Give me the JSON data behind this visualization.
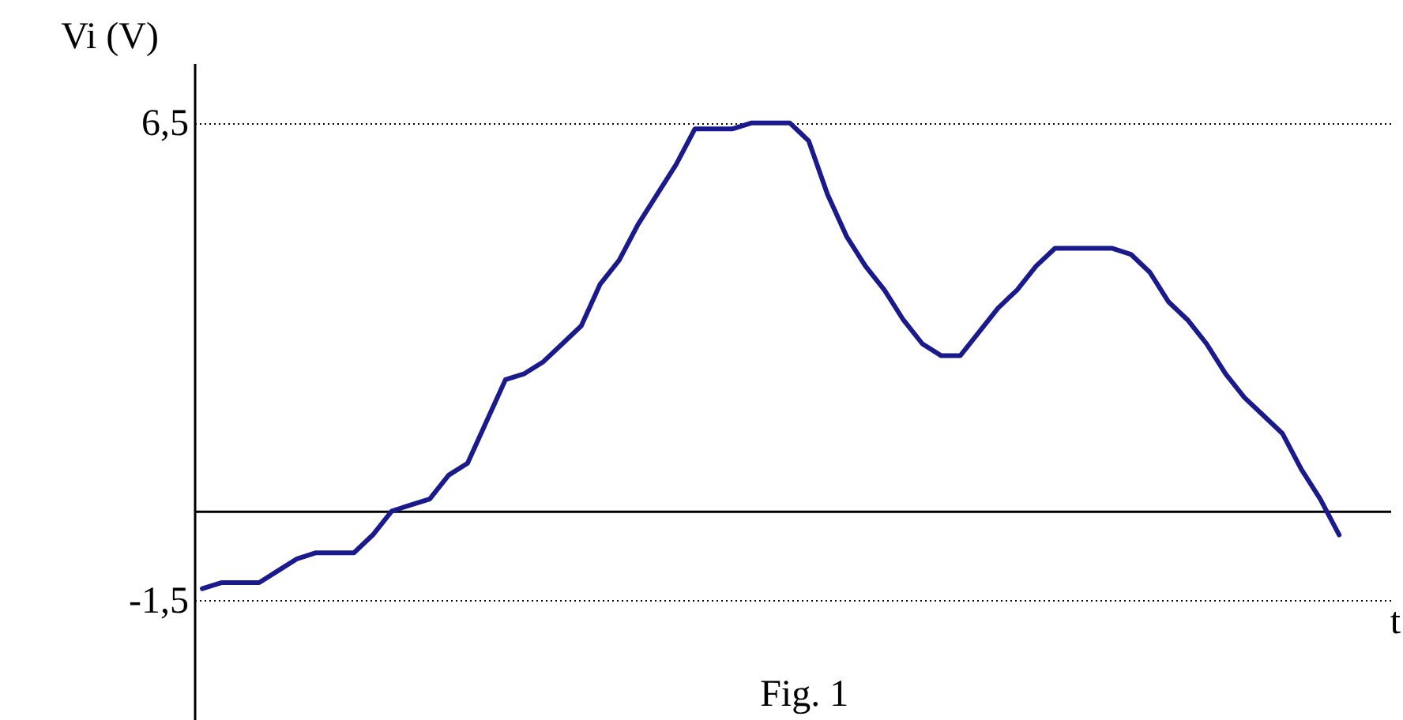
{
  "chart_data": {
    "type": "line",
    "xlabel": "t",
    "ylabel": "Vi (V)",
    "annotations": [
      "Fig. 1"
    ],
    "categories": [
      null,
      null,
      null,
      null,
      null,
      null,
      null,
      null,
      null,
      null,
      null,
      null,
      null,
      null,
      null,
      null,
      null,
      null,
      null,
      null,
      null,
      null,
      null,
      null,
      null,
      null,
      null,
      null,
      null,
      null,
      null,
      null,
      null,
      null,
      null,
      null,
      null,
      null,
      null,
      null,
      null,
      null,
      null,
      null,
      null,
      null,
      null,
      null,
      null,
      null,
      null,
      null,
      null,
      null,
      null,
      null,
      null,
      null,
      null,
      null,
      null
    ],
    "series": [
      {
        "color": "#1a1a8c",
        "values": [
          -1.3,
          -1.2,
          -1.2,
          -1.2,
          -1.0,
          -0.8,
          -0.7,
          -0.7,
          -0.7,
          -0.4,
          0.0,
          0.1,
          0.2,
          0.6,
          0.8,
          1.5,
          2.2,
          2.3,
          2.5,
          2.8,
          3.1,
          3.8,
          4.2,
          4.8,
          5.3,
          5.8,
          6.4,
          6.4,
          6.4,
          6.5,
          6.5,
          6.5,
          6.2,
          5.3,
          4.6,
          4.1,
          3.7,
          3.2,
          2.8,
          2.6,
          2.6,
          3.0,
          3.4,
          3.7,
          4.1,
          4.4,
          4.4,
          4.4,
          4.4,
          4.3,
          4.0,
          3.5,
          3.2,
          2.8,
          2.3,
          1.9,
          1.6,
          1.3,
          0.7,
          0.2,
          -0.4
        ]
      }
    ],
    "ylim": [
      -3.5,
      7.5
    ],
    "yticks": [
      {
        "value": 6.5,
        "label": "6,5"
      },
      {
        "value": -1.5,
        "label": "-1,5"
      }
    ],
    "grid": "y",
    "tick_labels": "y"
  }
}
